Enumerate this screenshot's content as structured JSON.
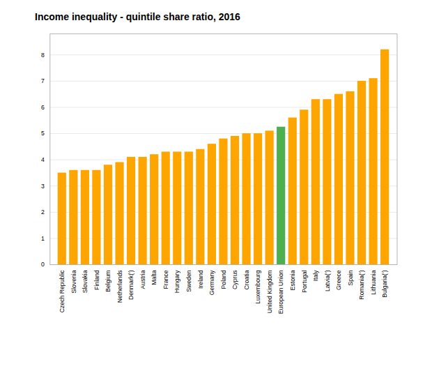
{
  "chart_data": {
    "type": "bar",
    "title": "Income inequality  - quintile share ratio, 2016",
    "categories": [
      "Czech Republic",
      "Slovenia",
      "Slovakia",
      "Finland",
      "Belgium",
      "Netherlands",
      "Denmark(ʹ)",
      "Austria",
      "Malta",
      "France",
      "Hungary",
      "Sweden",
      "Ireland",
      "Germany",
      "Poland",
      "Cyprus",
      "Croatia",
      "Luxembourg",
      "United Kingdom",
      "European Union",
      "Estonia",
      "Portugal",
      "Italy",
      "Latvia(ʹ)",
      "Greece",
      "Spain",
      "Romania(ʹ)",
      "Lithuania",
      "Bulgaria(ʹ)"
    ],
    "values": [
      3.5,
      3.6,
      3.6,
      3.6,
      3.8,
      3.9,
      4.1,
      4.1,
      4.2,
      4.3,
      4.3,
      4.3,
      4.4,
      4.6,
      4.8,
      4.9,
      5.0,
      5.0,
      5.1,
      5.25,
      5.6,
      5.9,
      6.3,
      6.3,
      6.5,
      6.6,
      7.0,
      7.1,
      8.2
    ],
    "colors": [
      "#FFA500",
      "#FFA500",
      "#FFA500",
      "#FFA500",
      "#FFA500",
      "#FFA500",
      "#FFA500",
      "#FFA500",
      "#FFA500",
      "#FFA500",
      "#FFA500",
      "#FFA500",
      "#FFA500",
      "#FFA500",
      "#FFA500",
      "#FFA500",
      "#FFA500",
      "#FFA500",
      "#FFA500",
      "#4CAF50",
      "#FFA500",
      "#FFA500",
      "#FFA500",
      "#FFA500",
      "#FFA500",
      "#FFA500",
      "#FFA500",
      "#FFA500",
      "#FFA500"
    ],
    "ylim": [
      0,
      8.8
    ],
    "yticks": [
      0,
      1,
      2,
      3,
      4,
      5,
      6,
      7,
      8
    ],
    "grid": true
  }
}
